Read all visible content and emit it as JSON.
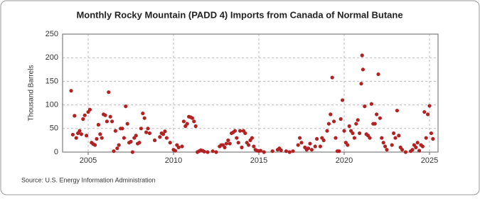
{
  "chart_data": {
    "type": "scatter",
    "title": "Monthly Rocky Mountain (PADD 4) Imports from Canada of Normal Butane",
    "y_label": "Thousand Barrels",
    "source": "Source: U.S. Energy Information Administration",
    "color": "#b22222",
    "xlim": [
      2003.5,
      2025.5
    ],
    "xticks": [
      2005,
      2010,
      2015,
      2020,
      2025
    ],
    "ylim": [
      0,
      250
    ],
    "yticks": [
      0,
      50,
      100,
      150,
      200,
      250
    ],
    "grid": true,
    "x": [
      2004.0,
      2004.1,
      2004.2,
      2004.3,
      2004.4,
      2004.5,
      2004.6,
      2004.7,
      2004.8,
      2004.9,
      2005.0,
      2005.1,
      2005.2,
      2005.3,
      2005.4,
      2005.5,
      2005.6,
      2005.7,
      2005.8,
      2005.9,
      2006.0,
      2006.1,
      2006.2,
      2006.3,
      2006.4,
      2006.5,
      2006.6,
      2006.7,
      2006.8,
      2006.9,
      2007.0,
      2007.1,
      2007.2,
      2007.3,
      2007.4,
      2007.5,
      2007.6,
      2007.7,
      2007.8,
      2007.9,
      2008.0,
      2008.1,
      2008.2,
      2008.3,
      2008.4,
      2008.5,
      2008.6,
      2008.9,
      2009.2,
      2009.3,
      2009.4,
      2009.5,
      2009.6,
      2009.8,
      2010.0,
      2010.1,
      2010.2,
      2010.3,
      2010.5,
      2010.6,
      2010.7,
      2010.8,
      2010.9,
      2011.0,
      2011.1,
      2011.2,
      2011.3,
      2011.4,
      2011.5,
      2011.6,
      2011.7,
      2011.8,
      2012.0,
      2012.3,
      2012.5,
      2012.7,
      2012.8,
      2012.9,
      2013.0,
      2013.1,
      2013.2,
      2013.3,
      2013.4,
      2013.5,
      2013.6,
      2013.7,
      2013.8,
      2013.9,
      2014.0,
      2014.1,
      2014.2,
      2014.3,
      2014.4,
      2014.5,
      2014.6,
      2014.7,
      2014.8,
      2014.9,
      2015.0,
      2015.1,
      2015.3,
      2015.8,
      2016.1,
      2016.2,
      2016.3,
      2016.6,
      2016.8,
      2017.0,
      2017.3,
      2017.4,
      2017.5,
      2017.7,
      2017.8,
      2017.9,
      2018.0,
      2018.1,
      2018.3,
      2018.4,
      2018.6,
      2018.7,
      2018.8,
      2019.0,
      2019.1,
      2019.2,
      2019.3,
      2019.4,
      2019.5,
      2019.6,
      2019.7,
      2019.8,
      2019.9,
      2020.0,
      2020.1,
      2020.2,
      2020.3,
      2020.4,
      2020.5,
      2020.6,
      2020.7,
      2020.8,
      2020.9,
      2021.0,
      2021.05,
      2021.1,
      2021.2,
      2021.3,
      2021.4,
      2021.5,
      2021.6,
      2021.7,
      2021.8,
      2021.9,
      2022.0,
      2022.1,
      2022.2,
      2022.3,
      2022.4,
      2022.5,
      2022.8,
      2022.9,
      2023.0,
      2023.1,
      2023.2,
      2023.3,
      2023.4,
      2023.6,
      2023.9,
      2024.0,
      2024.1,
      2024.2,
      2024.3,
      2024.4,
      2024.5,
      2024.6,
      2024.7,
      2024.8,
      2024.9,
      2025.0,
      2025.1,
      2025.2
    ],
    "values": [
      130,
      37,
      77,
      30,
      40,
      45,
      38,
      70,
      78,
      35,
      85,
      90,
      20,
      17,
      15,
      28,
      58,
      38,
      30,
      80,
      78,
      65,
      127,
      75,
      65,
      2,
      45,
      8,
      15,
      50,
      50,
      30,
      97,
      60,
      20,
      22,
      0,
      30,
      35,
      18,
      20,
      50,
      82,
      72,
      42,
      50,
      40,
      25,
      32,
      40,
      38,
      44,
      30,
      20,
      5,
      3,
      15,
      10,
      12,
      65,
      55,
      60,
      75,
      74,
      72,
      65,
      55,
      0,
      2,
      4,
      3,
      1,
      0,
      2,
      0,
      12,
      15,
      15,
      10,
      18,
      25,
      18,
      40,
      42,
      45,
      30,
      20,
      45,
      10,
      45,
      40,
      20,
      15,
      25,
      30,
      12,
      5,
      3,
      2,
      3,
      0,
      2,
      5,
      8,
      4,
      2,
      0,
      2,
      15,
      30,
      20,
      10,
      5,
      8,
      18,
      5,
      12,
      28,
      12,
      30,
      25,
      45,
      60,
      80,
      158,
      65,
      30,
      2,
      2,
      70,
      110,
      45,
      20,
      15,
      55,
      45,
      40,
      30,
      60,
      68,
      40,
      145,
      205,
      175,
      97,
      38,
      35,
      30,
      102,
      60,
      60,
      80,
      165,
      72,
      30,
      20,
      12,
      5,
      15,
      40,
      30,
      88,
      35,
      10,
      5,
      0,
      2,
      5,
      15,
      10,
      20,
      3,
      15,
      12,
      85,
      30,
      80,
      98,
      40,
      28
    ]
  }
}
